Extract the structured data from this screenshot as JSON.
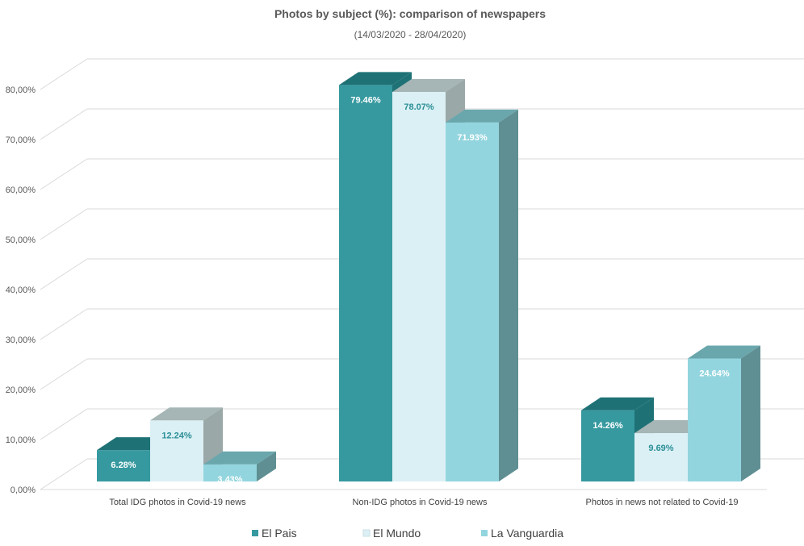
{
  "chart_data": {
    "type": "bar",
    "title": "Photos by subject (%): comparison of newspapers",
    "subtitle": "(14/03/2020 - 28/04/2020)",
    "categories": [
      "Total IDG photos in Covid-19 news",
      "Non-IDG photos in Covid-19 news",
      "Photos in news not related to Covid-19"
    ],
    "series": [
      {
        "name": "El Pais",
        "values": [
          6.28,
          79.46,
          14.26
        ],
        "labels": [
          "6.28%",
          "79.46%",
          "14.26%"
        ],
        "color": "#36999f",
        "top_color": "#1e7276",
        "side_color": "#1e7276",
        "label_color": "#ffffff"
      },
      {
        "name": "El Mundo",
        "values": [
          12.24,
          78.07,
          9.69
        ],
        "labels": [
          "12.24%",
          "78.07%",
          "9.69%"
        ],
        "color": "#dbf0f5",
        "top_color": "#a6b5b5",
        "side_color": "#9aa8a8",
        "label_color": "#2a8f96"
      },
      {
        "name": "La Vanguardia",
        "values": [
          3.43,
          71.93,
          24.64
        ],
        "labels": [
          "3.43%",
          "71.93%",
          "24.64%"
        ],
        "color": "#93d5de",
        "top_color": "#6aa7ad",
        "side_color": "#5f8f93",
        "label_color": "#ffffff"
      }
    ],
    "yticks": [
      "0,00%",
      "10,00%",
      "20,00%",
      "30,00%",
      "40,00%",
      "50,00%",
      "60,00%",
      "70,00%",
      "80,00%"
    ],
    "ylim": [
      0,
      80
    ],
    "grid": true,
    "legend_position": "bottom",
    "style": "3d-clustered-column"
  }
}
